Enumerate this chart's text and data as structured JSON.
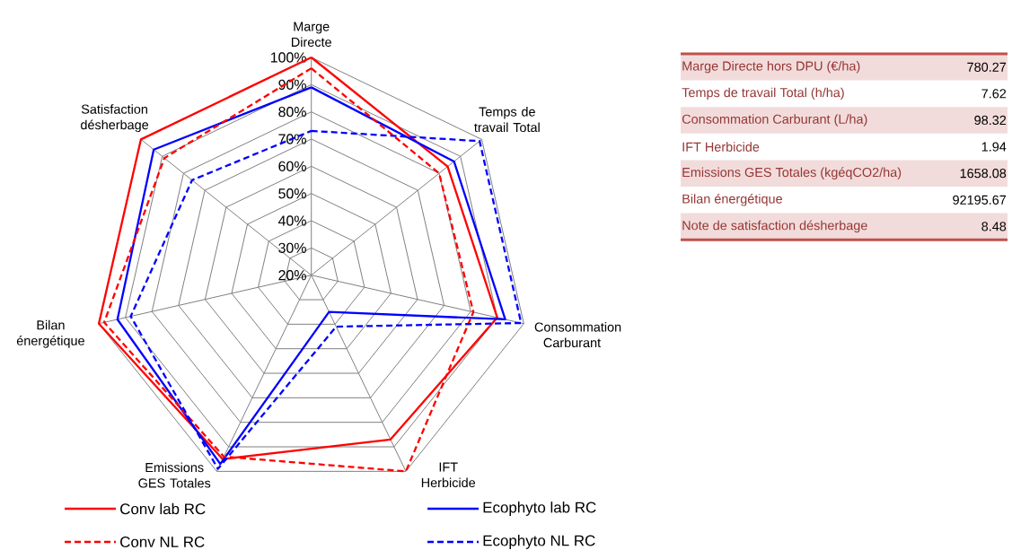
{
  "chart_data": [
    {
      "type": "radar",
      "categories": [
        "Marge Directe",
        "Temps de travail Total",
        "Consommation Carburant",
        "IFT Herbicide",
        "Emissions GES Totales",
        "Bilan énergétique",
        "Satisfaction désherbage"
      ],
      "series": [
        {
          "name": "Conv lab RC",
          "color": "#ff0000",
          "line_style": "solid",
          "values": [
            100,
            84,
            90,
            87,
            95,
            100,
            100
          ]
        },
        {
          "name": "Ecophyto lab RC",
          "color": "#0000ff",
          "line_style": "solid",
          "values": [
            89,
            87,
            93,
            35,
            97,
            93,
            94
          ]
        },
        {
          "name": "Conv NL RC",
          "color": "#ff0000",
          "line_style": "dashed",
          "values": [
            96,
            80,
            81,
            100,
            94,
            98,
            89
          ]
        },
        {
          "name": "Ecophyto NL RC",
          "color": "#0000ff",
          "line_style": "dashed",
          "values": [
            73,
            99,
            99,
            41,
            99,
            88,
            76
          ]
        }
      ],
      "ylim": [
        20,
        100
      ],
      "yticks": [
        {
          "value": 20,
          "label": "20%"
        },
        {
          "value": 30,
          "label": "30%"
        },
        {
          "value": 40,
          "label": "40%"
        },
        {
          "value": 50,
          "label": "50%"
        },
        {
          "value": 60,
          "label": "60%"
        },
        {
          "value": 70,
          "label": "70%"
        },
        {
          "value": 80,
          "label": "80%"
        },
        {
          "value": 90,
          "label": "90%"
        },
        {
          "value": 100,
          "label": "100%"
        }
      ],
      "grid": true,
      "legend": "bottom",
      "marker": "none"
    },
    {
      "type": "other",
      "categories": [
        "Marge Directe hors DPU (€/ha)",
        "Temps de travail Total (h/ha)",
        "Consommation Carburant (L/ha)",
        "IFT Herbicide",
        "Emissions GES Totales (kgéqCO2/ha)",
        "Bilan énergétique",
        "Note de satisfaction désherbage"
      ],
      "values": [
        780.27,
        7.62,
        98.32,
        1.94,
        1658.08,
        92195.67,
        8.48
      ],
      "data_labels": true
    }
  ]
}
